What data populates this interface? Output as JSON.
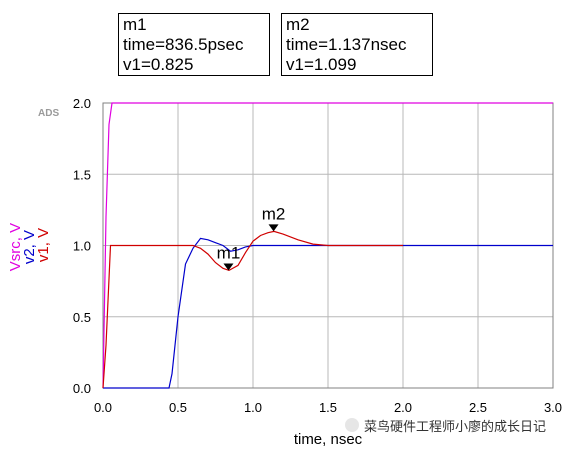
{
  "markers": [
    {
      "name": "m1",
      "time_text": "time=836.5psec",
      "value_text": "v1=0.825"
    },
    {
      "name": "m2",
      "time_text": "time=1.137nsec",
      "value_text": "v1=1.099"
    }
  ],
  "watermark": "菜鸟硬件工程师小廖的成长日记",
  "chart_data": {
    "type": "line",
    "logo_text": "ADS",
    "xlabel": "time, nsec",
    "ylabel_parts": [
      "Vsrc, V",
      "v2, V",
      "v1, V"
    ],
    "xlim": [
      0.0,
      3.0
    ],
    "ylim": [
      0.0,
      2.0
    ],
    "x_ticks": [
      "0.0",
      "0.5",
      "1.0",
      "1.5",
      "2.0",
      "2.5",
      "3.0"
    ],
    "y_ticks": [
      "0.0",
      "0.5",
      "1.0",
      "1.5",
      "2.0"
    ],
    "grid": true,
    "colors": {
      "Vsrc": "#e000e0",
      "v2": "#0000cc",
      "v1": "#d00000",
      "grid": "#b8b8b8"
    },
    "series": [
      {
        "name": "Vsrc",
        "color": "#e000e0",
        "x": [
          0.0,
          0.02,
          0.04,
          0.06,
          3.0
        ],
        "y": [
          0.0,
          1.2,
          1.85,
          2.0,
          2.0
        ]
      },
      {
        "name": "v2",
        "color": "#0000cc",
        "x": [
          0.0,
          0.44,
          0.46,
          0.5,
          0.55,
          0.6,
          0.65,
          0.7,
          0.75,
          0.8,
          0.85,
          0.9,
          0.95,
          1.0,
          1.05,
          1.1,
          1.2,
          1.4,
          3.0
        ],
        "y": [
          0.0,
          0.0,
          0.1,
          0.5,
          0.87,
          0.98,
          1.05,
          1.04,
          1.02,
          1.0,
          0.96,
          0.97,
          0.99,
          1.0,
          1.0,
          1.0,
          1.0,
          1.0,
          1.0
        ]
      },
      {
        "name": "v1",
        "color": "#d00000",
        "x": [
          0.0,
          0.02,
          0.05,
          0.1,
          0.6,
          0.65,
          0.7,
          0.75,
          0.8,
          0.84,
          0.9,
          0.95,
          1.0,
          1.05,
          1.1,
          1.14,
          1.2,
          1.3,
          1.4,
          1.5,
          1.7,
          2.0
        ],
        "y": [
          0.0,
          0.3,
          1.0,
          1.0,
          1.0,
          0.98,
          0.94,
          0.88,
          0.84,
          0.825,
          0.86,
          0.95,
          1.03,
          1.07,
          1.09,
          1.099,
          1.08,
          1.04,
          1.01,
          1.0,
          1.0,
          1.0
        ]
      }
    ],
    "markers": [
      {
        "name": "m1",
        "x": 0.8365,
        "y": 0.825
      },
      {
        "name": "m2",
        "x": 1.137,
        "y": 1.099
      }
    ]
  }
}
